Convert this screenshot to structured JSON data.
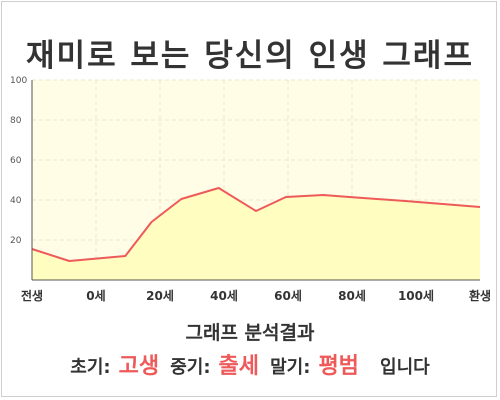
{
  "page": {
    "title": "재미로 보는 당신의 인생 그래프",
    "summary_title": "그래프 분석결과",
    "summary": {
      "early_label": "초기:",
      "early_value": "고생",
      "mid_label": "중기:",
      "mid_value": "출세",
      "late_label": "말기:",
      "late_value": "평범",
      "suffix": "입니다"
    }
  },
  "colors": {
    "line": "#ee5a5a",
    "fill": "#fffdc0",
    "plot_bg": "#fffde6",
    "grid": "#ebe8c8",
    "accent_text": "#ee5a5a"
  },
  "chart_data": {
    "type": "area",
    "title": "",
    "xlabel": "",
    "ylabel": "",
    "x_ticks": [
      "전생",
      "0세",
      "20세",
      "40세",
      "60세",
      "80세",
      "100세",
      "환생"
    ],
    "y_ticks": [
      100,
      80,
      60,
      40,
      20
    ],
    "ylim": [
      0,
      100
    ],
    "x_range": [
      -10,
      110
    ],
    "grid": true,
    "legend": "none",
    "series": [
      {
        "x": [
          -10,
          0,
          15,
          22,
          30,
          40,
          50,
          58,
          68,
          75,
          90,
          110
        ],
        "y": [
          15.5,
          9.5,
          12,
          29,
          40.5,
          46,
          34.5,
          41.5,
          42.5,
          41.5,
          39.5,
          36.5
        ]
      }
    ]
  }
}
